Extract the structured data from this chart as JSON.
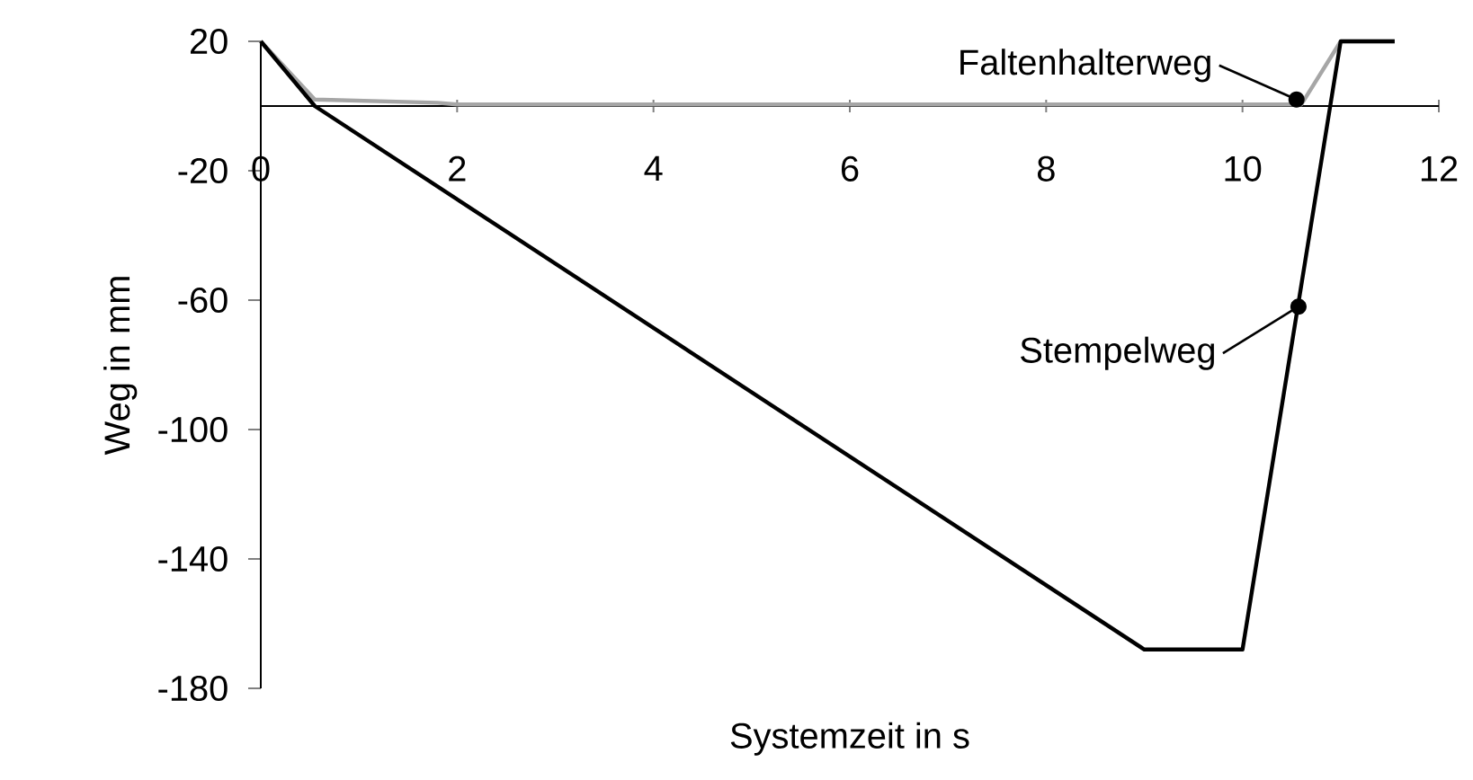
{
  "chart_data": {
    "type": "line",
    "xlabel": "Systemzeit in s",
    "ylabel": "Weg in mm",
    "xlim": [
      0,
      12
    ],
    "ylim": [
      -180,
      20
    ],
    "xticks": [
      0,
      2,
      4,
      6,
      8,
      10,
      12
    ],
    "yticks": [
      20,
      -20,
      -60,
      -100,
      -140,
      -180
    ],
    "grid": false,
    "marker": "none",
    "line_style": "solid",
    "series": [
      {
        "color": "#a6a6a6",
        "x": [
          0,
          0.55,
          1.8,
          2,
          10.6,
          11.0,
          11.55
        ],
        "values": [
          20,
          2,
          1,
          0.5,
          0.5,
          20,
          20
        ]
      },
      {
        "color": "#000000",
        "x": [
          0,
          0.55,
          9.0,
          10.0,
          11.0,
          11.55
        ],
        "values": [
          20,
          0,
          -168,
          -168,
          20,
          20
        ]
      }
    ],
    "annotations": [
      {
        "text": "Faltenhalterweg",
        "x": 10.55,
        "y": 2
      },
      {
        "text": "Stempelweg",
        "x": 10.57,
        "y": -62
      }
    ]
  }
}
